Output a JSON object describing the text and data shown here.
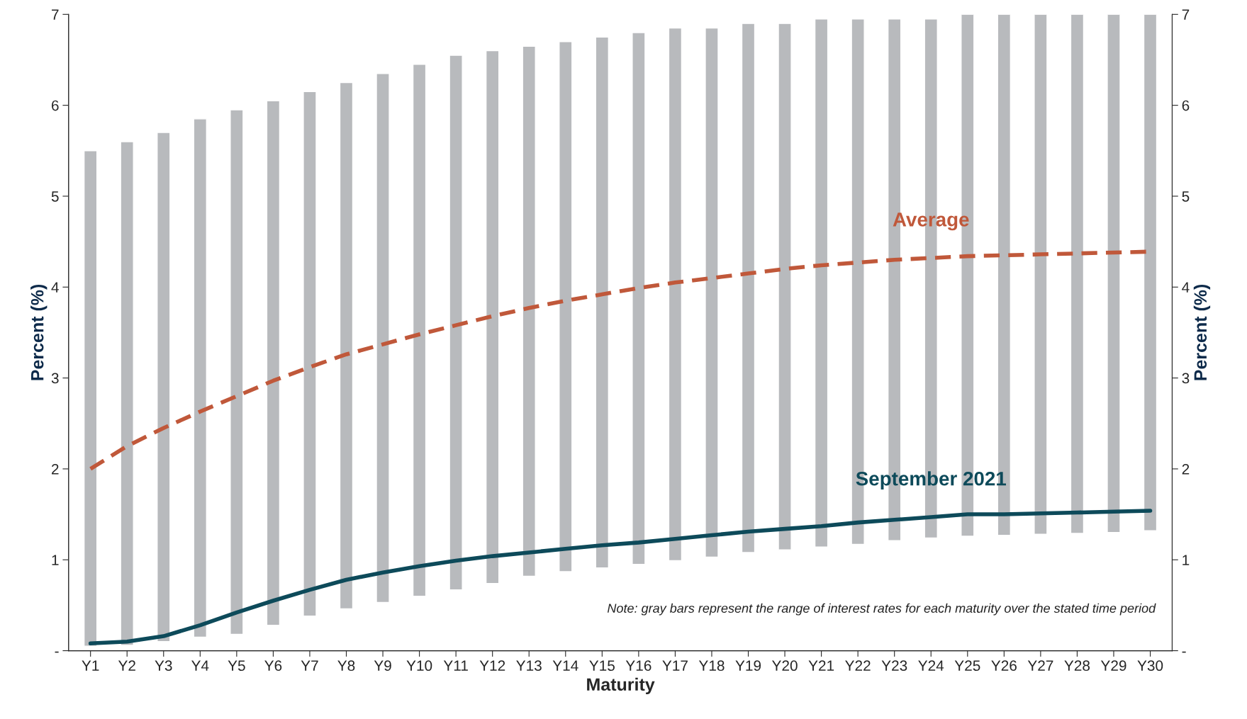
{
  "chart_data": {
    "type": "bar",
    "xlabel": "Maturity",
    "ylabel": "Percent (%)",
    "y2label": "Percent (%)",
    "categories": [
      "Y1",
      "Y2",
      "Y3",
      "Y4",
      "Y5",
      "Y6",
      "Y7",
      "Y8",
      "Y9",
      "Y10",
      "Y11",
      "Y12",
      "Y13",
      "Y14",
      "Y15",
      "Y16",
      "Y17",
      "Y18",
      "Y19",
      "Y20",
      "Y21",
      "Y22",
      "Y23",
      "Y24",
      "Y25",
      "Y26",
      "Y27",
      "Y28",
      "Y29",
      "Y30"
    ],
    "series": [
      {
        "color": "#b8babd",
        "base": [
          0.05,
          0.06,
          0.1,
          0.15,
          0.18,
          0.28,
          0.38,
          0.46,
          0.53,
          0.6,
          0.67,
          0.74,
          0.82,
          0.87,
          0.91,
          0.95,
          0.99,
          1.03,
          1.08,
          1.11,
          1.14,
          1.17,
          1.21,
          1.24,
          1.26,
          1.27,
          1.28,
          1.29,
          1.3,
          1.32
        ],
        "values": [
          5.45,
          5.54,
          5.6,
          5.7,
          5.77,
          5.77,
          5.77,
          5.79,
          5.82,
          5.85,
          5.88,
          5.86,
          5.83,
          5.83,
          5.84,
          5.85,
          5.86,
          5.82,
          5.82,
          5.79,
          5.81,
          5.78,
          5.74,
          5.71,
          5.74,
          5.73,
          5.72,
          5.71,
          5.7,
          5.68
        ]
      },
      {
        "type": "line",
        "name": "Average",
        "color": "#c0583a",
        "line_style": "dashed",
        "values": [
          2.0,
          2.25,
          2.45,
          2.63,
          2.8,
          2.97,
          3.12,
          3.26,
          3.37,
          3.48,
          3.58,
          3.68,
          3.77,
          3.85,
          3.92,
          3.99,
          4.05,
          4.1,
          4.15,
          4.2,
          4.24,
          4.27,
          4.3,
          4.32,
          4.34,
          4.35,
          4.36,
          4.37,
          4.38,
          4.39
        ]
      },
      {
        "type": "line",
        "name": "September 2021",
        "color": "#0d4a5a",
        "line_style": "solid",
        "values": [
          0.08,
          0.1,
          0.16,
          0.28,
          0.42,
          0.55,
          0.67,
          0.78,
          0.86,
          0.93,
          0.99,
          1.04,
          1.08,
          1.12,
          1.16,
          1.19,
          1.23,
          1.27,
          1.31,
          1.34,
          1.37,
          1.41,
          1.44,
          1.47,
          1.5,
          1.5,
          1.51,
          1.52,
          1.53,
          1.54
        ]
      }
    ],
    "ylim": [
      0,
      7
    ],
    "yticks": [
      {
        "value": 0,
        "label": "-"
      },
      1,
      2,
      3,
      4,
      5,
      6,
      7
    ],
    "y2lim": [
      0,
      7
    ],
    "y2ticks": [
      {
        "value": 0,
        "label": "-"
      },
      1,
      2,
      3,
      4,
      5,
      6,
      7
    ],
    "annotations": [
      "Note: gray bars represent the range of interest rates for each maturity over the stated time period"
    ]
  }
}
